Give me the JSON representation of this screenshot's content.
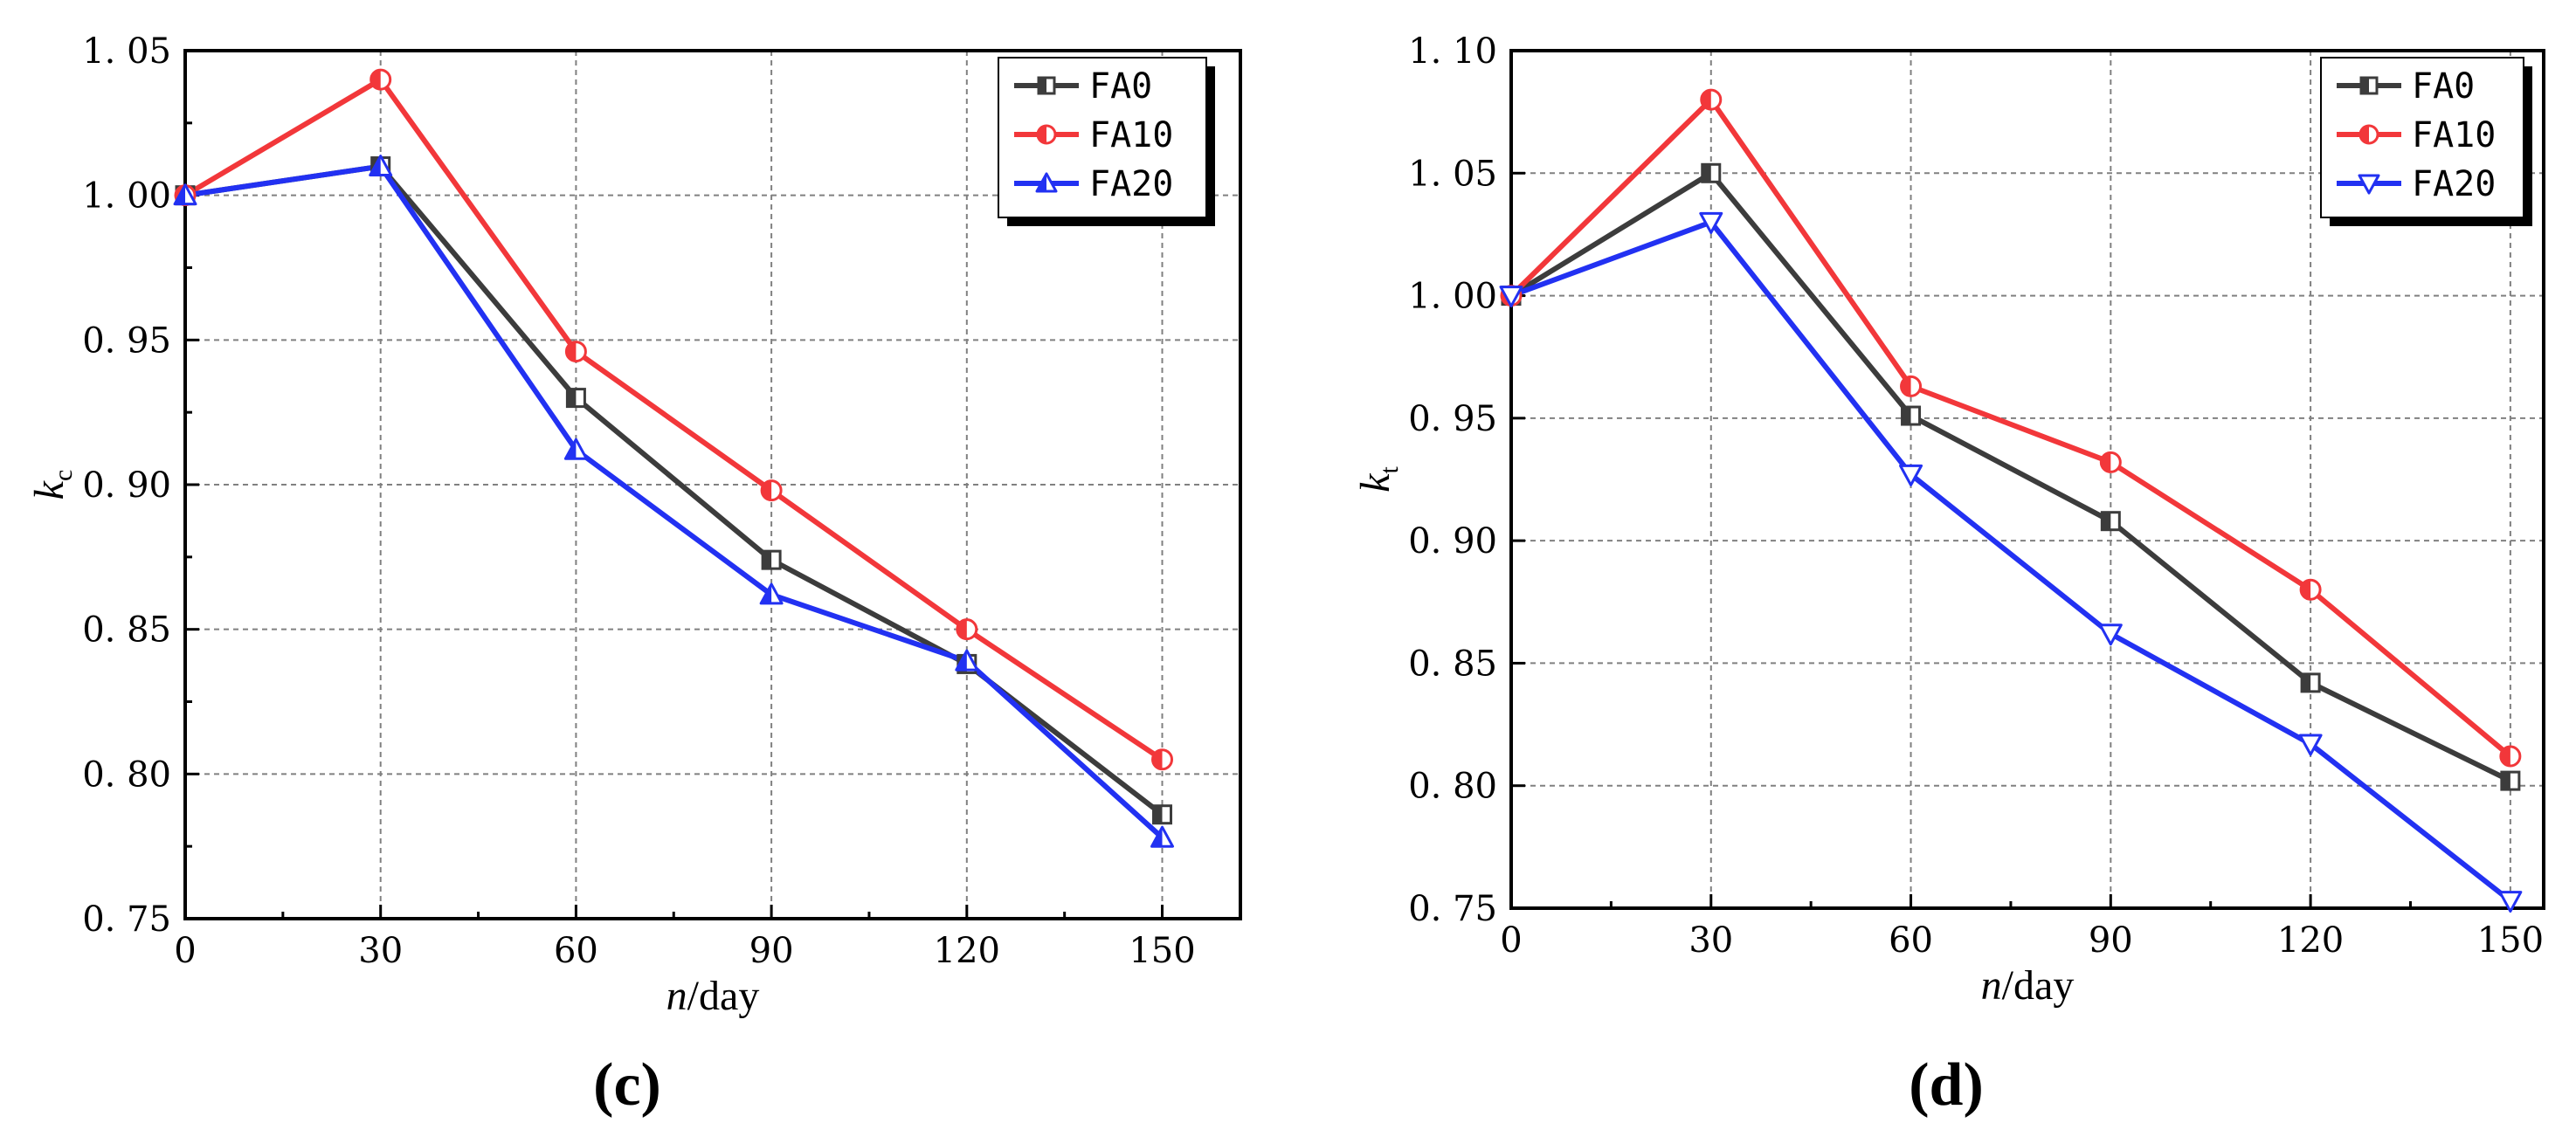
{
  "chart_data": [
    {
      "type": "line",
      "panel_label": "(c)",
      "x": [
        0,
        30,
        60,
        90,
        120,
        150
      ],
      "xlim": [
        0,
        162
      ],
      "xticks": [
        "0",
        "30",
        "60",
        "90",
        "120",
        "150"
      ],
      "ylim": [
        0.75,
        1.05
      ],
      "yticks": [
        "0. 75",
        "0. 80",
        "0. 85",
        "0. 90",
        "0. 95",
        "1. 00",
        "1. 05"
      ],
      "xlabel": {
        "italic": "n",
        "rest": "/day"
      },
      "ylabel": {
        "italic": "k",
        "sub": "c"
      },
      "grid": true,
      "legend_position": "top-right",
      "series": [
        {
          "name": "FA0",
          "color": "#3c3c3c",
          "marker": "square",
          "values": [
            1.0,
            1.01,
            0.93,
            0.874,
            0.838,
            0.786
          ]
        },
        {
          "name": "FA10",
          "color": "#f2373a",
          "marker": "circle",
          "values": [
            1.0,
            1.04,
            0.946,
            0.898,
            0.85,
            0.805
          ]
        },
        {
          "name": "FA20",
          "color": "#2231f2",
          "marker": "triangle-up",
          "values": [
            1.0,
            1.01,
            0.912,
            0.862,
            0.839,
            0.778
          ]
        }
      ]
    },
    {
      "type": "line",
      "panel_label": "(d)",
      "x": [
        0,
        30,
        60,
        90,
        120,
        150
      ],
      "xlim": [
        0,
        155
      ],
      "xticks": [
        "0",
        "30",
        "60",
        "90",
        "120",
        "150"
      ],
      "ylim": [
        0.75,
        1.1
      ],
      "yticks": [
        "0. 75",
        "0. 80",
        "0. 85",
        "0. 90",
        "0. 95",
        "1. 00",
        "1. 05",
        "1. 10"
      ],
      "xlabel": {
        "italic": "n",
        "rest": "/day"
      },
      "ylabel": {
        "italic": "k",
        "sub": "t"
      },
      "grid": true,
      "legend_position": "top-right",
      "series": [
        {
          "name": "FA0",
          "color": "#3c3c3c",
          "marker": "square",
          "values": [
            1.0,
            1.05,
            0.951,
            0.908,
            0.842,
            0.802
          ]
        },
        {
          "name": "FA10",
          "color": "#f2373a",
          "marker": "circle",
          "values": [
            1.0,
            1.08,
            0.963,
            0.932,
            0.88,
            0.812
          ]
        },
        {
          "name": "FA20",
          "color": "#2231f2",
          "marker": "triangle-down",
          "values": [
            1.0,
            1.03,
            0.927,
            0.862,
            0.817,
            0.753
          ]
        }
      ]
    }
  ]
}
